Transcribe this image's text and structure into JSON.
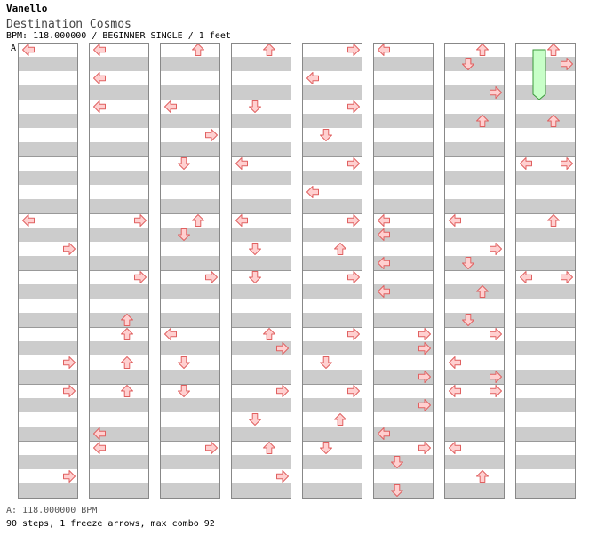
{
  "song": {
    "artist": "Vanello",
    "title": "Destination Cosmos",
    "bpm_line": "BPM: 118.000000 / BEGINNER SINGLE / 1 feet"
  },
  "chart_data": {
    "type": "step-chart",
    "columns": 8,
    "measures_per_column": 8,
    "lanes": [
      "left",
      "down",
      "up",
      "right"
    ],
    "bpm_marker": {
      "label": "A",
      "measure": 0,
      "beat": 0
    },
    "freeze_arrows": [
      {
        "lane": "down",
        "measure": 56,
        "beat_start": 0,
        "beat_end": 2
      }
    ],
    "notes": [
      {
        "m": 0,
        "b": 0,
        "d": "left"
      },
      {
        "m": 3,
        "b": 0,
        "d": "left"
      },
      {
        "m": 3,
        "b": 2,
        "d": "right"
      },
      {
        "m": 5,
        "b": 2,
        "d": "right"
      },
      {
        "m": 6,
        "b": 0,
        "d": "right"
      },
      {
        "m": 7,
        "b": 2,
        "d": "right"
      },
      {
        "m": 8,
        "b": 0,
        "d": "left"
      },
      {
        "m": 8,
        "b": 2,
        "d": "left"
      },
      {
        "m": 9,
        "b": 0,
        "d": "left"
      },
      {
        "m": 11,
        "b": 0,
        "d": "right"
      },
      {
        "m": 12,
        "b": 0,
        "d": "right"
      },
      {
        "m": 12,
        "b": 3,
        "d": "up"
      },
      {
        "m": 13,
        "b": 0,
        "d": "up"
      },
      {
        "m": 13,
        "b": 2,
        "d": "up"
      },
      {
        "m": 14,
        "b": 0,
        "d": "up"
      },
      {
        "m": 14,
        "b": 3,
        "d": "left"
      },
      {
        "m": 15,
        "b": 0,
        "d": "left"
      },
      {
        "m": 16,
        "b": 0,
        "d": "up"
      },
      {
        "m": 17,
        "b": 0,
        "d": "left"
      },
      {
        "m": 17,
        "b": 2,
        "d": "right"
      },
      {
        "m": 18,
        "b": 0,
        "d": "down"
      },
      {
        "m": 19,
        "b": 0,
        "d": "up"
      },
      {
        "m": 19,
        "b": 1,
        "d": "down"
      },
      {
        "m": 20,
        "b": 0,
        "d": "right"
      },
      {
        "m": 21,
        "b": 0,
        "d": "left"
      },
      {
        "m": 21,
        "b": 2,
        "d": "down"
      },
      {
        "m": 22,
        "b": 0,
        "d": "down"
      },
      {
        "m": 23,
        "b": 0,
        "d": "right"
      },
      {
        "m": 24,
        "b": 0,
        "d": "up"
      },
      {
        "m": 25,
        "b": 0,
        "d": "down"
      },
      {
        "m": 26,
        "b": 0,
        "d": "left"
      },
      {
        "m": 27,
        "b": 0,
        "d": "left"
      },
      {
        "m": 27,
        "b": 2,
        "d": "down"
      },
      {
        "m": 28,
        "b": 0,
        "d": "down"
      },
      {
        "m": 29,
        "b": 0,
        "d": "up"
      },
      {
        "m": 29,
        "b": 1,
        "d": "right"
      },
      {
        "m": 30,
        "b": 0,
        "d": "right"
      },
      {
        "m": 30,
        "b": 2,
        "d": "down"
      },
      {
        "m": 31,
        "b": 0,
        "d": "up"
      },
      {
        "m": 31,
        "b": 2,
        "d": "right"
      },
      {
        "m": 32,
        "b": 0,
        "d": "right"
      },
      {
        "m": 32,
        "b": 2,
        "d": "left"
      },
      {
        "m": 33,
        "b": 0,
        "d": "right"
      },
      {
        "m": 33,
        "b": 2,
        "d": "down"
      },
      {
        "m": 34,
        "b": 0,
        "d": "right"
      },
      {
        "m": 34,
        "b": 2,
        "d": "left"
      },
      {
        "m": 35,
        "b": 0,
        "d": "right"
      },
      {
        "m": 35,
        "b": 2,
        "d": "up"
      },
      {
        "m": 36,
        "b": 0,
        "d": "right"
      },
      {
        "m": 37,
        "b": 0,
        "d": "right"
      },
      {
        "m": 37,
        "b": 2,
        "d": "down"
      },
      {
        "m": 38,
        "b": 0,
        "d": "right"
      },
      {
        "m": 38,
        "b": 2,
        "d": "up"
      },
      {
        "m": 39,
        "b": 0,
        "d": "down"
      },
      {
        "m": 40,
        "b": 0,
        "d": "left"
      },
      {
        "m": 43,
        "b": 0,
        "d": "left"
      },
      {
        "m": 43,
        "b": 1,
        "d": "left"
      },
      {
        "m": 43,
        "b": 3,
        "d": "left"
      },
      {
        "m": 44,
        "b": 1,
        "d": "left"
      },
      {
        "m": 45,
        "b": 0,
        "d": "right"
      },
      {
        "m": 45,
        "b": 1,
        "d": "right"
      },
      {
        "m": 45,
        "b": 3,
        "d": "right"
      },
      {
        "m": 46,
        "b": 1,
        "d": "right"
      },
      {
        "m": 46,
        "b": 3,
        "d": "left"
      },
      {
        "m": 47,
        "b": 0,
        "d": "right"
      },
      {
        "m": 47,
        "b": 1,
        "d": "down"
      },
      {
        "m": 47,
        "b": 3,
        "d": "down"
      },
      {
        "m": 48,
        "b": 1,
        "d": "down"
      },
      {
        "m": 48,
        "b": 0,
        "d": "up"
      },
      {
        "m": 48,
        "b": 1,
        "d": "down"
      },
      {
        "m": 48,
        "b": 3,
        "d": "right"
      },
      {
        "m": 49,
        "b": 1,
        "d": "up"
      },
      {
        "m": 51,
        "b": 0,
        "d": "left"
      },
      {
        "m": 51,
        "b": 2,
        "d": "right"
      },
      {
        "m": 51,
        "b": 3,
        "d": "down"
      },
      {
        "m": 52,
        "b": 1,
        "d": "up"
      },
      {
        "m": 52,
        "b": 3,
        "d": "down"
      },
      {
        "m": 53,
        "b": 0,
        "d": "right"
      },
      {
        "m": 53,
        "b": 2,
        "d": "left"
      },
      {
        "m": 53,
        "b": 3,
        "d": "right"
      },
      {
        "m": 54,
        "b": 0,
        "d": "left"
      },
      {
        "m": 54,
        "b": 0,
        "d": "right"
      },
      {
        "m": 55,
        "b": 0,
        "d": "left"
      },
      {
        "m": 55,
        "b": 2,
        "d": "up"
      },
      {
        "m": 56,
        "b": 0,
        "d": "up"
      },
      {
        "m": 56,
        "b": 1,
        "d": "right"
      },
      {
        "m": 57,
        "b": 1,
        "d": "up"
      },
      {
        "m": 58,
        "b": 0,
        "d": "left"
      },
      {
        "m": 58,
        "b": 0,
        "d": "right"
      },
      {
        "m": 59,
        "b": 0,
        "d": "up"
      },
      {
        "m": 60,
        "b": 0,
        "d": "left"
      },
      {
        "m": 60,
        "b": 0,
        "d": "right"
      }
    ]
  },
  "footer": {
    "bpm_note": "A: 118.000000 BPM",
    "stats": "90 steps, 1 freeze arrows, max combo 92"
  },
  "colors": {
    "arrow_fill": "#ffd0d0",
    "arrow_stroke": "#e06060",
    "freeze_fill": "#c8ffc8",
    "freeze_stroke": "#3a9a3a",
    "stripe": "#cccccc",
    "border": "#888888"
  }
}
